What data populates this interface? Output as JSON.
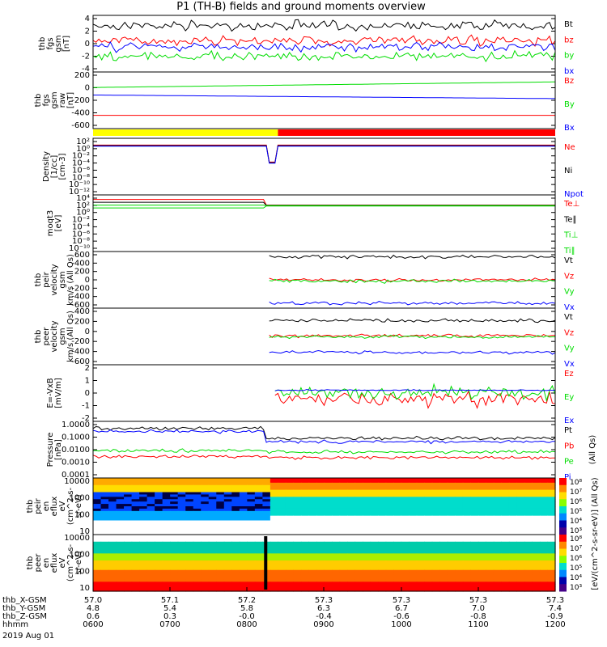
{
  "title": "P1 (TH-B) fields and ground moments overview",
  "colors": {
    "black": "#000000",
    "red": "#ff0000",
    "green": "#00dd00",
    "blue": "#0000ff",
    "yellow": "#ffff00"
  },
  "chart_data": [
    {
      "type": "line",
      "panel": "fgs-gsm",
      "ylabel": [
        "thb",
        "fgs",
        "gsm",
        "[nT]"
      ],
      "ylim": [
        -4,
        4
      ],
      "yticks": [
        "4",
        "2",
        "0",
        "-2",
        "-4"
      ],
      "series": [
        {
          "name": "Bt",
          "color": "black"
        },
        {
          "name": "bz",
          "color": "red"
        },
        {
          "name": "by",
          "color": "green"
        },
        {
          "name": "bx",
          "color": "blue"
        }
      ]
    },
    {
      "type": "line",
      "panel": "fgs-gsm-raw",
      "ylabel": [
        "thb",
        "fgs",
        "gsm",
        "raw",
        "[nT]"
      ],
      "ylim": [
        -700,
        250
      ],
      "yticks": [
        "200",
        "0",
        "-200",
        "-400",
        "-600"
      ],
      "series": [
        {
          "name": "Bz",
          "color": "red",
          "values": [
            -520,
            -520
          ]
        },
        {
          "name": "By",
          "color": "green",
          "values": [
            -20,
            80
          ]
        },
        {
          "name": "Bx",
          "color": "blue",
          "values": [
            -155,
            -220
          ]
        }
      ]
    },
    {
      "type": "bar",
      "panel": "state-bar",
      "segments": [
        {
          "from": 0.0,
          "to": 0.4,
          "color": "yellow"
        },
        {
          "from": 0.4,
          "to": 1.0,
          "color": "red"
        }
      ]
    },
    {
      "type": "line",
      "panel": "density",
      "ylabel": [
        "Density",
        "[1/cc]",
        "[cm-3]"
      ],
      "ylim": [
        "1e-12",
        "1e2"
      ],
      "yticks": [
        "10²",
        "10⁰",
        "10⁻²",
        "10⁻⁴",
        "10⁻⁶",
        "10⁻⁸",
        "10⁻¹⁰",
        "10⁻¹²"
      ],
      "series": [
        {
          "name": "Ne",
          "color": "red"
        },
        {
          "name": "Ni",
          "color": "black"
        },
        {
          "name": "Npot",
          "color": "blue"
        }
      ]
    },
    {
      "type": "line",
      "panel": "temperature",
      "ylabel": [
        "moqt3",
        "[eV]"
      ],
      "ylim": [
        "1e-10",
        "1e4"
      ],
      "yticks": [
        "10⁴",
        "10²",
        "10⁰",
        "10⁻²",
        "10⁻⁴",
        "10⁻⁶",
        "10⁻⁸",
        "10⁻¹⁰"
      ],
      "series": [
        {
          "name": "Te⊥",
          "color": "red"
        },
        {
          "name": "Te∥",
          "color": "black"
        },
        {
          "name": "Ti⊥",
          "color": "green"
        },
        {
          "name": "Ti∥",
          "color": "green"
        }
      ]
    },
    {
      "type": "line",
      "panel": "peir-velocity",
      "ylabel": [
        "thb",
        "peir",
        "velocity",
        "gsm",
        "km/s (All Qs)"
      ],
      "ylim": [
        -600,
        600
      ],
      "yticks": [
        "600",
        "400",
        "200",
        "0",
        "-200",
        "-400",
        "-600"
      ],
      "series": [
        {
          "name": "Vt",
          "color": "black",
          "level": 550
        },
        {
          "name": "Vz",
          "color": "red",
          "level": 0
        },
        {
          "name": "Vy",
          "color": "green",
          "level": -30
        },
        {
          "name": "Vx",
          "color": "blue",
          "level": -560
        }
      ]
    },
    {
      "type": "line",
      "panel": "peer-velocity",
      "ylabel": [
        "thb",
        "peer",
        "velocity",
        "gsm",
        "km/s (All Qs)"
      ],
      "ylim": [
        -600,
        600
      ],
      "yticks": [
        "400",
        "200",
        "0",
        "-200",
        "-400",
        "-600"
      ],
      "series": [
        {
          "name": "Vt",
          "color": "black",
          "level": 380
        },
        {
          "name": "Vz",
          "color": "red",
          "level": 20
        },
        {
          "name": "Vy",
          "color": "green",
          "level": -10
        },
        {
          "name": "Vx",
          "color": "blue",
          "level": -380
        }
      ]
    },
    {
      "type": "line",
      "panel": "e-field",
      "ylabel": [
        "E=-VxB",
        "[mV/m]"
      ],
      "ylim": [
        -2,
        2
      ],
      "yticks": [
        "2",
        "1",
        "0",
        "-1",
        "-2"
      ],
      "series": [
        {
          "name": "Ez",
          "color": "red"
        },
        {
          "name": "Ey",
          "color": "green"
        },
        {
          "name": "Ex",
          "color": "blue"
        }
      ]
    },
    {
      "type": "line",
      "panel": "pressure",
      "ylabel": [
        "Pressure",
        "[nPa]"
      ],
      "ylim": [
        "0.0001",
        "1"
      ],
      "yticks": [
        "1.0000",
        "0.1000",
        "0.0100",
        "0.0010",
        "0.0001"
      ],
      "series": [
        {
          "name": "Pt",
          "color": "black"
        },
        {
          "name": "Pb",
          "color": "red"
        },
        {
          "name": "Pe",
          "color": "green"
        },
        {
          "name": "Pi",
          "color": "blue"
        }
      ],
      "side_label": "(All Qs)"
    },
    {
      "type": "heatmap",
      "panel": "peir-eflux",
      "ylabel": [
        "thb",
        "peir",
        "en",
        "eflux",
        "eV",
        "(cm^2-s-",
        "sr-eV)"
      ],
      "yticks": [
        "10000",
        "1000",
        "100",
        "10"
      ]
    },
    {
      "type": "heatmap",
      "panel": "peer-eflux",
      "ylabel": [
        "thb",
        "peer",
        "en",
        "eflux",
        "eV",
        "(cm^2-s-",
        "sr-eV)"
      ],
      "yticks": [
        "10000",
        "1000",
        "100",
        "10"
      ]
    }
  ],
  "colorbar": {
    "ticks": [
      "10⁸",
      "10⁷",
      "10⁶",
      "10⁵",
      "10⁴",
      "10³"
    ],
    "label": "[eV/(cm^2-s-sr-eV)]",
    "label2": "[eV/(cm^2-s-sr-eV)] (All Qs)"
  },
  "xaxis": {
    "rows": [
      {
        "label": "thb_X-GSM",
        "values": [
          "57.0",
          "57.1",
          "57.2",
          "57.3",
          "57.3",
          "57.3",
          "57.3"
        ]
      },
      {
        "label": "thb_Y-GSM",
        "values": [
          "4.8",
          "5.4",
          "5.8",
          "6.3",
          "6.7",
          "7.0",
          "7.4"
        ]
      },
      {
        "label": "thb_Z-GSM",
        "values": [
          "0.6",
          "0.3",
          "-0.0",
          "-0.4",
          "-0.6",
          "-0.8",
          "-0.9"
        ]
      },
      {
        "label": "hhmm",
        "values": [
          "0600",
          "0700",
          "0800",
          "0900",
          "1000",
          "1100",
          "1200"
        ]
      }
    ],
    "date": "2019 Aug 01"
  }
}
